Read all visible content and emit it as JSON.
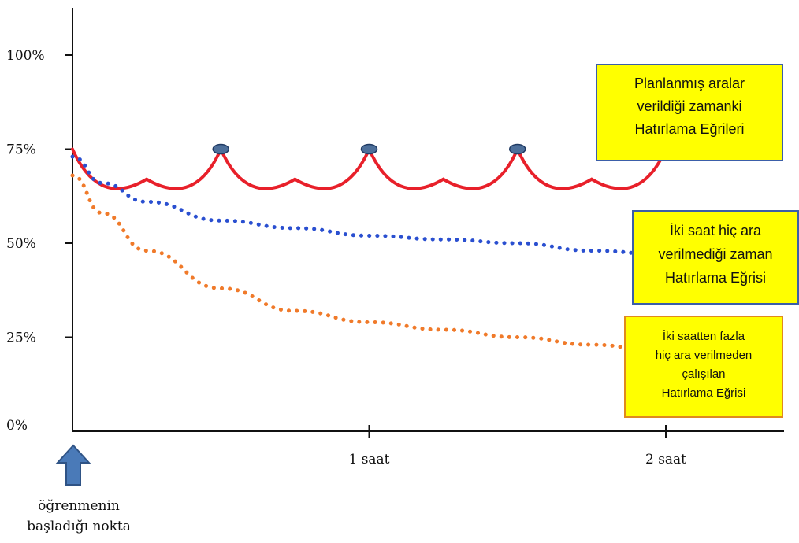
{
  "chart_data": {
    "type": "line",
    "title": "",
    "xlabel": "",
    "ylabel": "",
    "x_range": [
      0,
      2.2
    ],
    "ylim": [
      0,
      100
    ],
    "y_ticks": [
      {
        "value": 0,
        "label": "0%"
      },
      {
        "value": 25,
        "label": "25%"
      },
      {
        "value": 50,
        "label": "50%"
      },
      {
        "value": 75,
        "label": "75%"
      },
      {
        "value": 100,
        "label": "100%"
      }
    ],
    "x_ticks": [
      {
        "value": 1,
        "label": "1 saat"
      },
      {
        "value": 2,
        "label": "2 saat"
      }
    ],
    "grid": false,
    "series": [
      {
        "name": "Planlanmış aralar verildiği zamanki Hatırlama Eğrileri",
        "style": "solid",
        "color": "#e8202a",
        "x": [
          0,
          0.25,
          0.5,
          0.75,
          1.0,
          1.25,
          1.5,
          1.75,
          2.0
        ],
        "values": [
          75,
          67,
          75,
          67,
          75,
          67,
          75,
          67,
          75
        ],
        "break_markers_x": [
          0.5,
          1.0,
          1.5,
          2.0
        ]
      },
      {
        "name": "İki saat hiç ara verilmediği zaman Hatırlama Eğrisi",
        "style": "dotted",
        "color": "#2a4fd0",
        "x": [
          0,
          0.1,
          0.25,
          0.5,
          0.75,
          1.0,
          1.25,
          1.5,
          1.75,
          2.0
        ],
        "values": [
          73,
          66,
          61,
          56,
          54,
          52,
          51,
          50,
          48,
          47
        ]
      },
      {
        "name": "İki saatten fazla hiç ara verilmeden çalışılan Hatırlama Eğrisi",
        "style": "dotted",
        "color": "#f07a2a",
        "x": [
          0,
          0.1,
          0.25,
          0.5,
          0.75,
          1.0,
          1.25,
          1.5,
          1.75,
          2.0
        ],
        "values": [
          68,
          58,
          48,
          38,
          32,
          29,
          27,
          25,
          23,
          21
        ]
      }
    ],
    "annotations": [
      {
        "id": "planned",
        "lines": [
          "Planlanmış aralar",
          "verildiği zamanki",
          "Hatırlama Eğrileri"
        ],
        "fill": "#ffff00",
        "border": "#3b5ea8"
      },
      {
        "id": "two-hours",
        "lines": [
          "İki saat hiç ara",
          "verilmediği zaman",
          "Hatırlama Eğrisi"
        ],
        "fill": "#ffff00",
        "border": "#3b5ea8"
      },
      {
        "id": "over-two-hours",
        "lines": [
          "İki saatten fazla",
          "hiç ara verilmeden",
          "çalışılan",
          "Hatırlama Eğrisi"
        ],
        "fill": "#ffff00",
        "border": "#e08a1e"
      }
    ],
    "start_marker": {
      "arrow_color": "#4a7ab8",
      "lines": [
        "öğrenmenin",
        "başladığı nokta"
      ]
    }
  }
}
